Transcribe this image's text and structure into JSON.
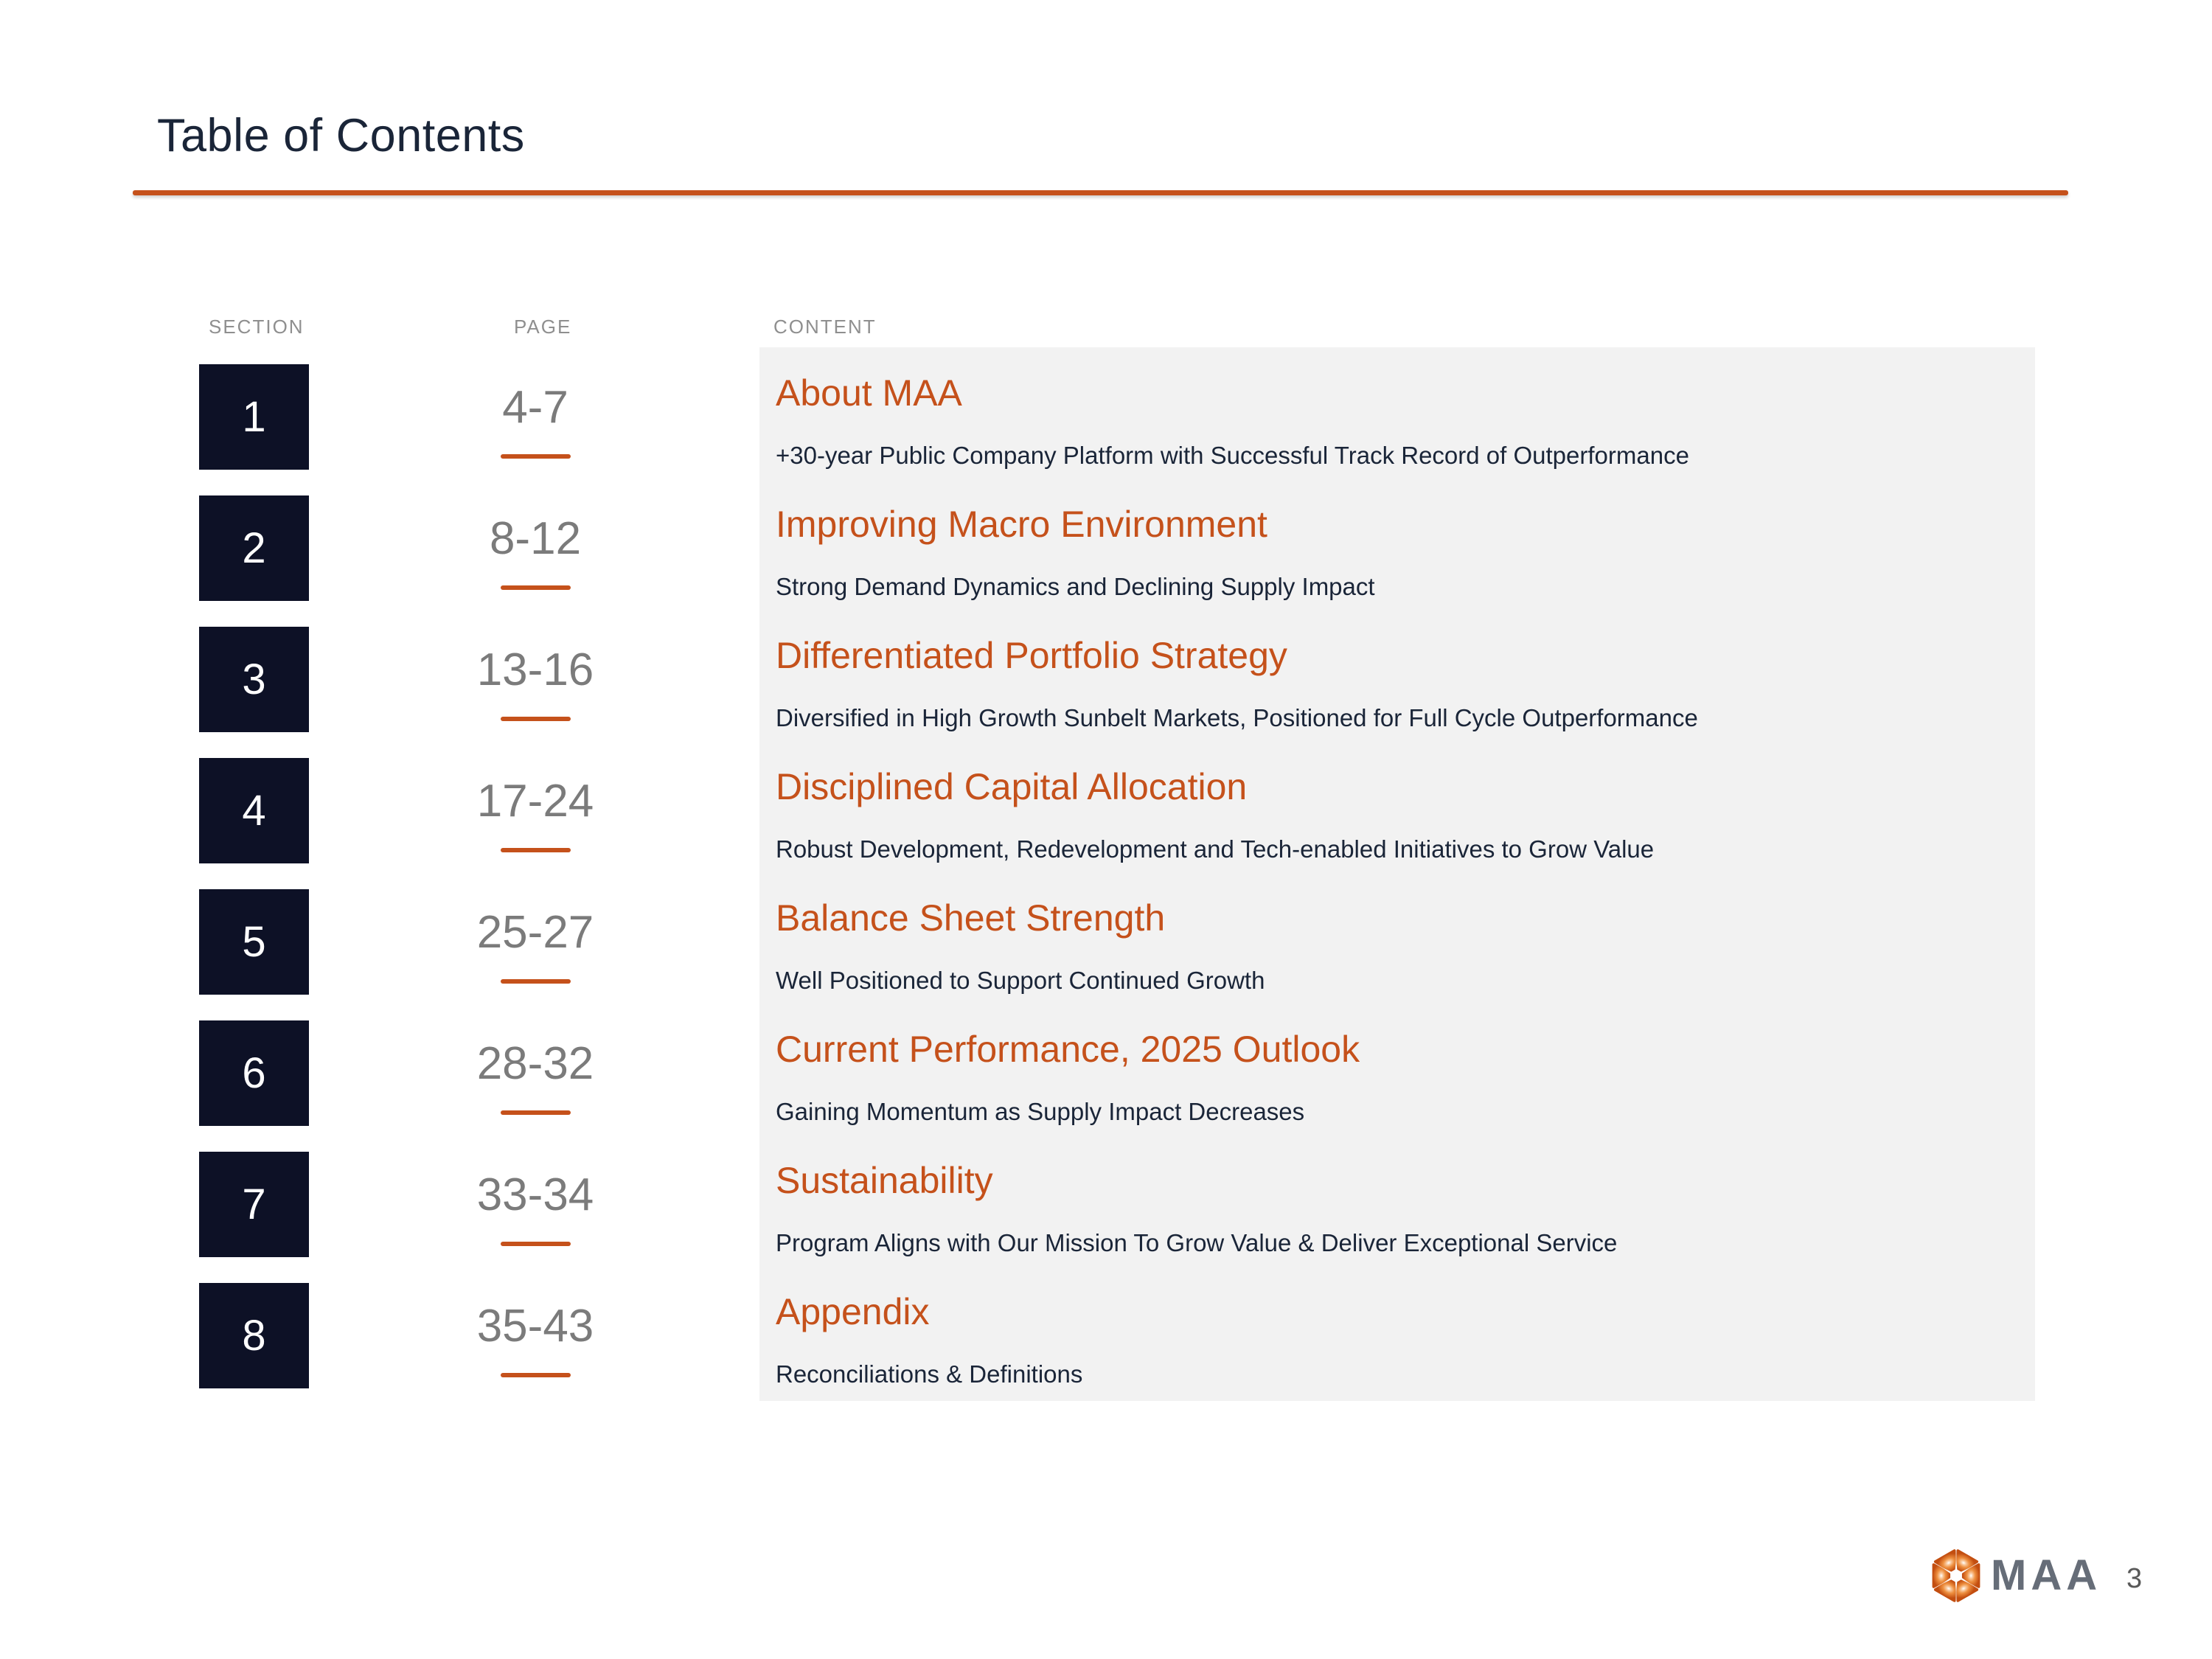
{
  "slide": {
    "title": "Table of Contents"
  },
  "columns": {
    "section": "SECTION",
    "page": "PAGE",
    "content": "CONTENT"
  },
  "rows": [
    {
      "num": "1",
      "pages": "4-7",
      "heading": "About MAA",
      "subtitle": "+30-year Public Company Platform with Successful Track Record of Outperformance"
    },
    {
      "num": "2",
      "pages": "8-12",
      "heading": "Improving Macro Environment",
      "subtitle": "Strong Demand Dynamics and Declining Supply Impact"
    },
    {
      "num": "3",
      "pages": "13-16",
      "heading": "Differentiated Portfolio Strategy",
      "subtitle": "Diversified in High Growth Sunbelt Markets, Positioned for Full Cycle Outperformance"
    },
    {
      "num": "4",
      "pages": "17-24",
      "heading": "Disciplined Capital Allocation",
      "subtitle": "Robust Development, Redevelopment and Tech-enabled Initiatives to Grow Value"
    },
    {
      "num": "5",
      "pages": "25-27",
      "heading": "Balance Sheet Strength",
      "subtitle": "Well Positioned to Support Continued Growth"
    },
    {
      "num": "6",
      "pages": "28-32",
      "heading": "Current Performance, 2025 Outlook",
      "subtitle": "Gaining Momentum as Supply Impact Decreases"
    },
    {
      "num": "7",
      "pages": "33-34",
      "heading": "Sustainability",
      "subtitle": "Program Aligns with Our Mission To Grow Value & Deliver Exceptional Service"
    },
    {
      "num": "8",
      "pages": "35-43",
      "heading": "Appendix",
      "subtitle": "Reconciliations & Definitions"
    }
  ],
  "footer": {
    "logo_text": "MAA",
    "page_number": "3"
  },
  "icons": {
    "logo_mark": "maa-pinwheel-icon"
  },
  "colors": {
    "accent_orange": "#C5511B",
    "navy_box": "#0D1126",
    "navy_text": "#1A2538",
    "panel_gray": "#F2F2F2",
    "page_number_gray": "#7B7B7B",
    "column_header_gray": "#8F8F8F",
    "logo_gray": "#666D78"
  }
}
